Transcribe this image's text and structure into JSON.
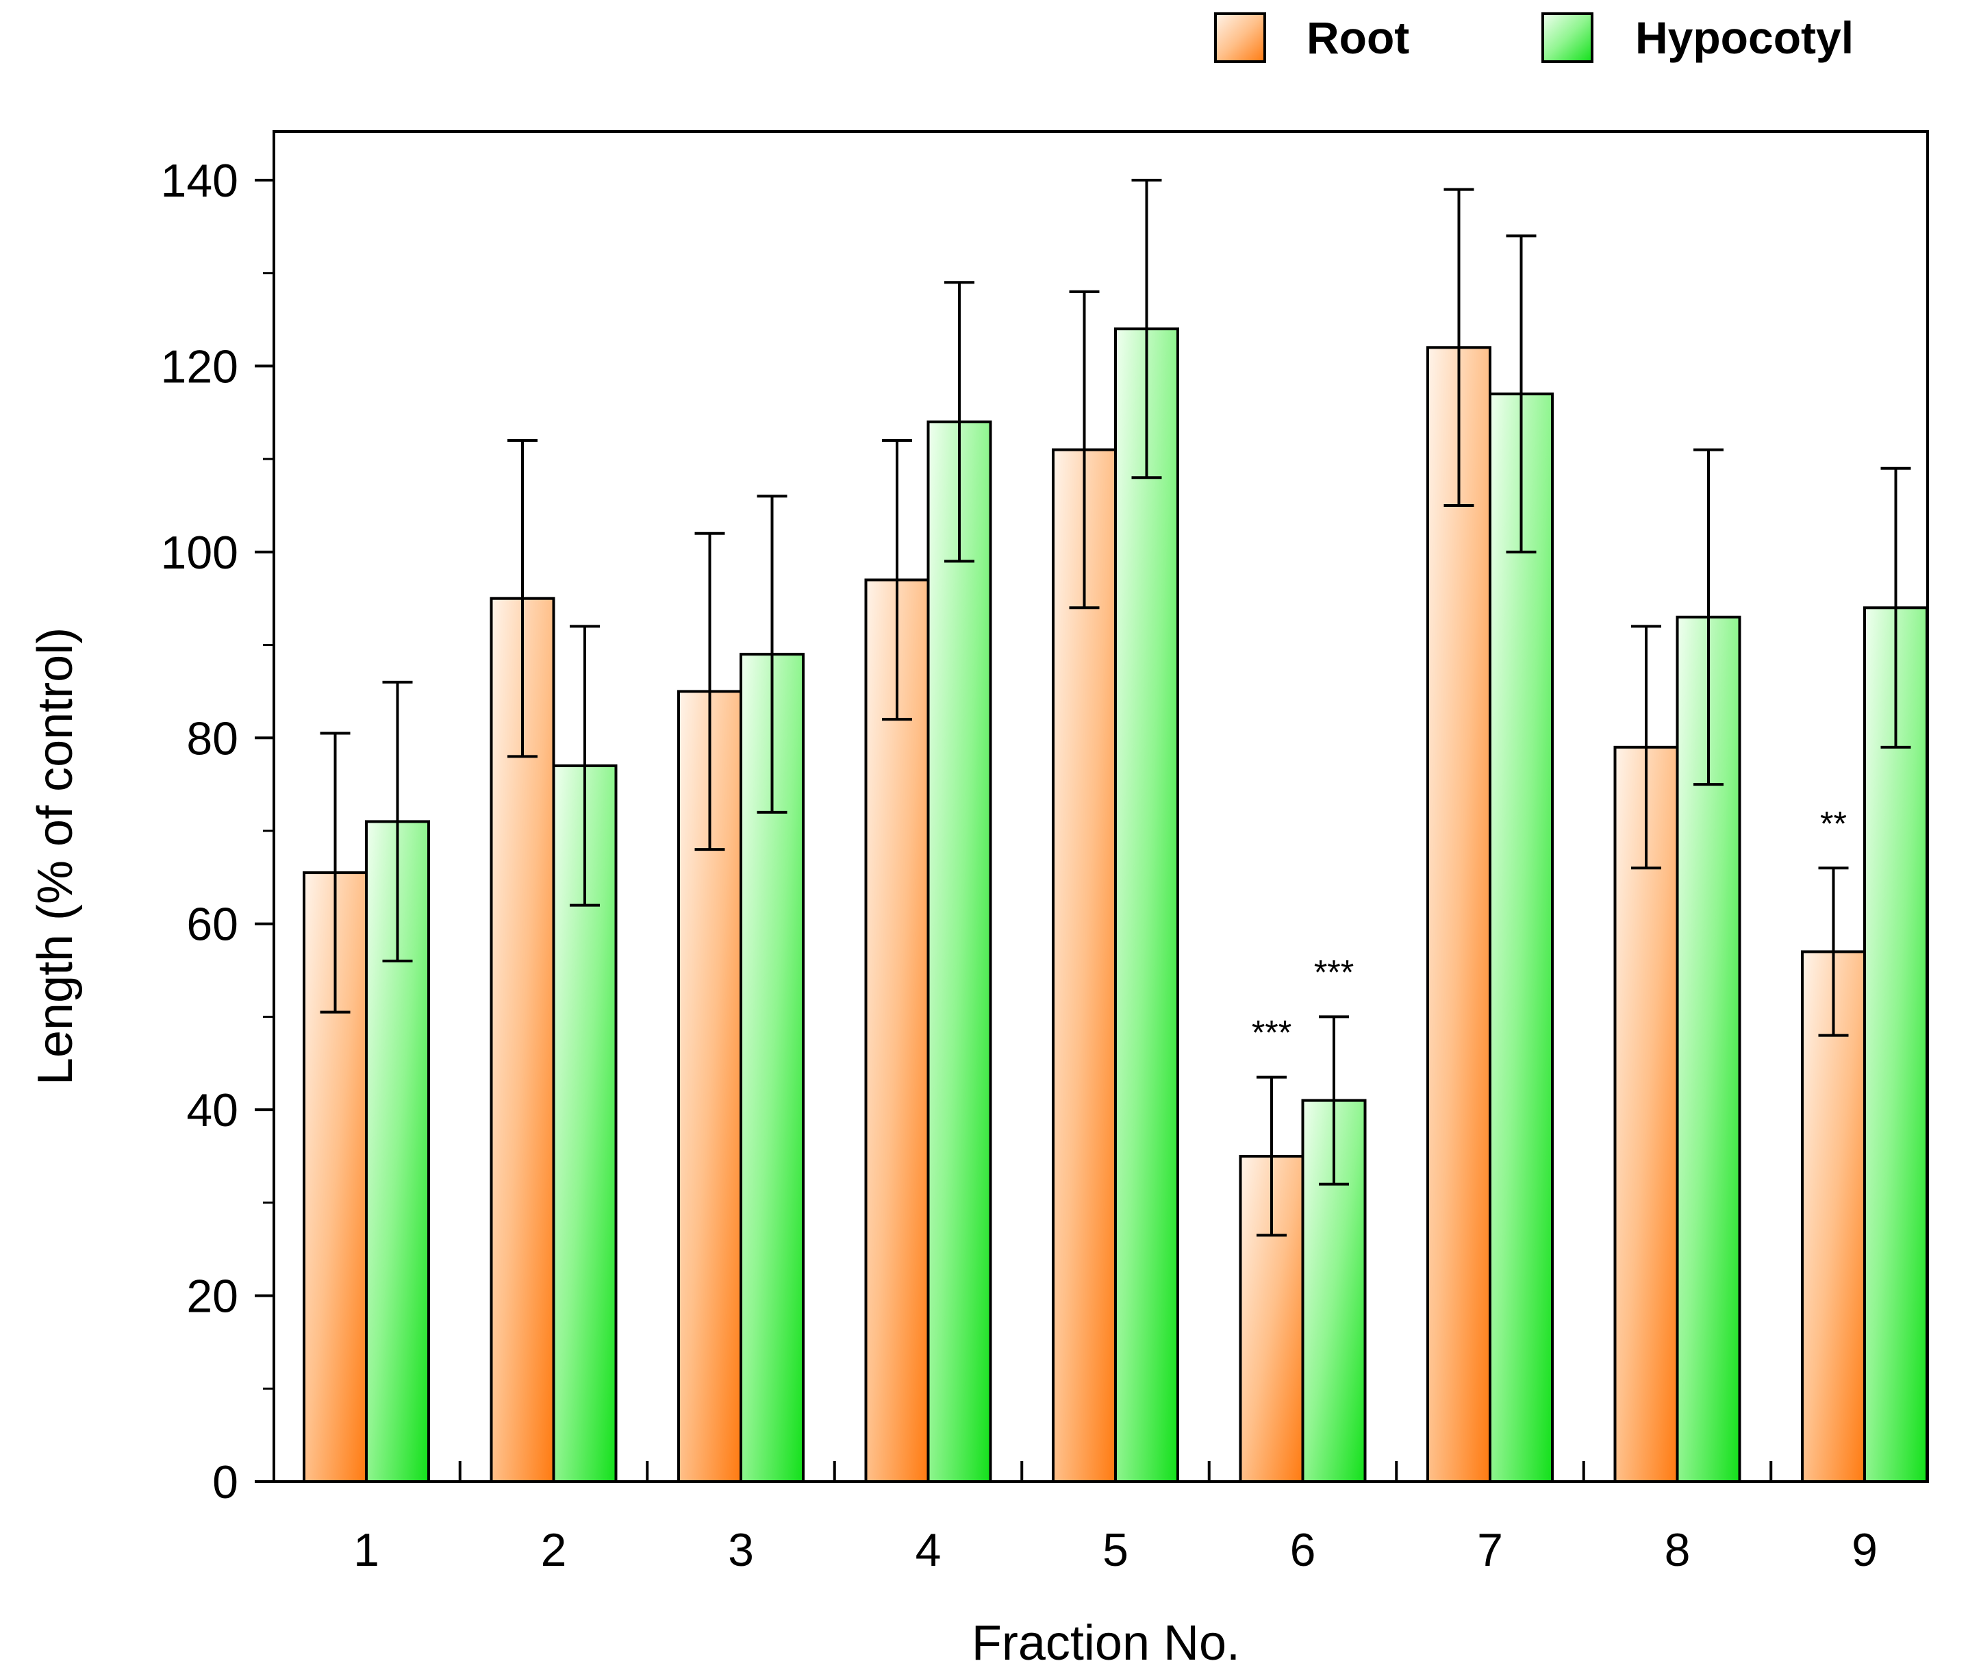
{
  "chart_data": {
    "type": "bar",
    "title": "",
    "xlabel": "Fraction No.",
    "ylabel": "Length  (% of control)",
    "ylim": [
      0,
      145
    ],
    "yticks": [
      0,
      20,
      40,
      60,
      80,
      100,
      120,
      140
    ],
    "yticks_minor": [
      10,
      30,
      50,
      70,
      90,
      110,
      130
    ],
    "categories": [
      "1",
      "2",
      "3",
      "4",
      "5",
      "6",
      "7",
      "8",
      "9"
    ],
    "series": [
      {
        "name": "Root",
        "color": "#ff7f1e",
        "values": [
          65.5,
          95,
          85,
          97,
          111,
          35,
          122,
          79,
          57
        ],
        "errors": [
          15,
          17,
          17,
          15,
          17,
          8.5,
          17,
          13,
          9
        ]
      },
      {
        "name": "Hypocotyl",
        "color": "#22e32a",
        "values": [
          71,
          77,
          89,
          114,
          124,
          41,
          117,
          93,
          94
        ],
        "errors": [
          15,
          15,
          17,
          15,
          16,
          9,
          17,
          18,
          15
        ]
      }
    ],
    "annotations": [
      {
        "category": "6",
        "series": "Root",
        "text": "***"
      },
      {
        "category": "6",
        "series": "Hypocotyl",
        "text": "***"
      },
      {
        "category": "9",
        "series": "Root",
        "text": "**"
      }
    ],
    "legend_position": "top-right",
    "grid": false
  }
}
